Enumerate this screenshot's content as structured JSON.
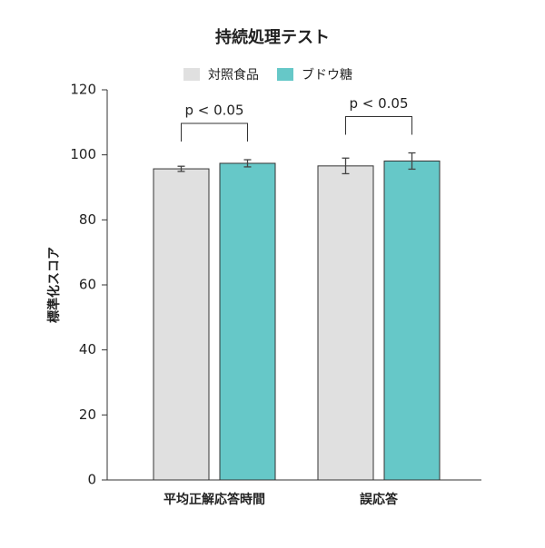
{
  "chart_data": {
    "type": "bar",
    "title": "持続処理テスト",
    "ylabel": "標準化スコア",
    "categories": [
      "平均正解応答時間",
      "誤応答"
    ],
    "series": [
      {
        "name": "対照食品",
        "color": "#e0e0e0",
        "values": [
          95.7,
          96.6
        ],
        "errors": [
          0.8,
          2.4
        ]
      },
      {
        "name": "ブドウ糖",
        "color": "#66c8c8",
        "values": [
          97.4,
          98.1
        ],
        "errors": [
          1.1,
          2.5
        ]
      }
    ],
    "annotations": [
      "p < 0.05",
      "p < 0.05"
    ],
    "ylim": [
      0,
      120
    ],
    "yticks": [
      0,
      20,
      40,
      60,
      80,
      100,
      120
    ],
    "grid": false,
    "legend": "top"
  }
}
